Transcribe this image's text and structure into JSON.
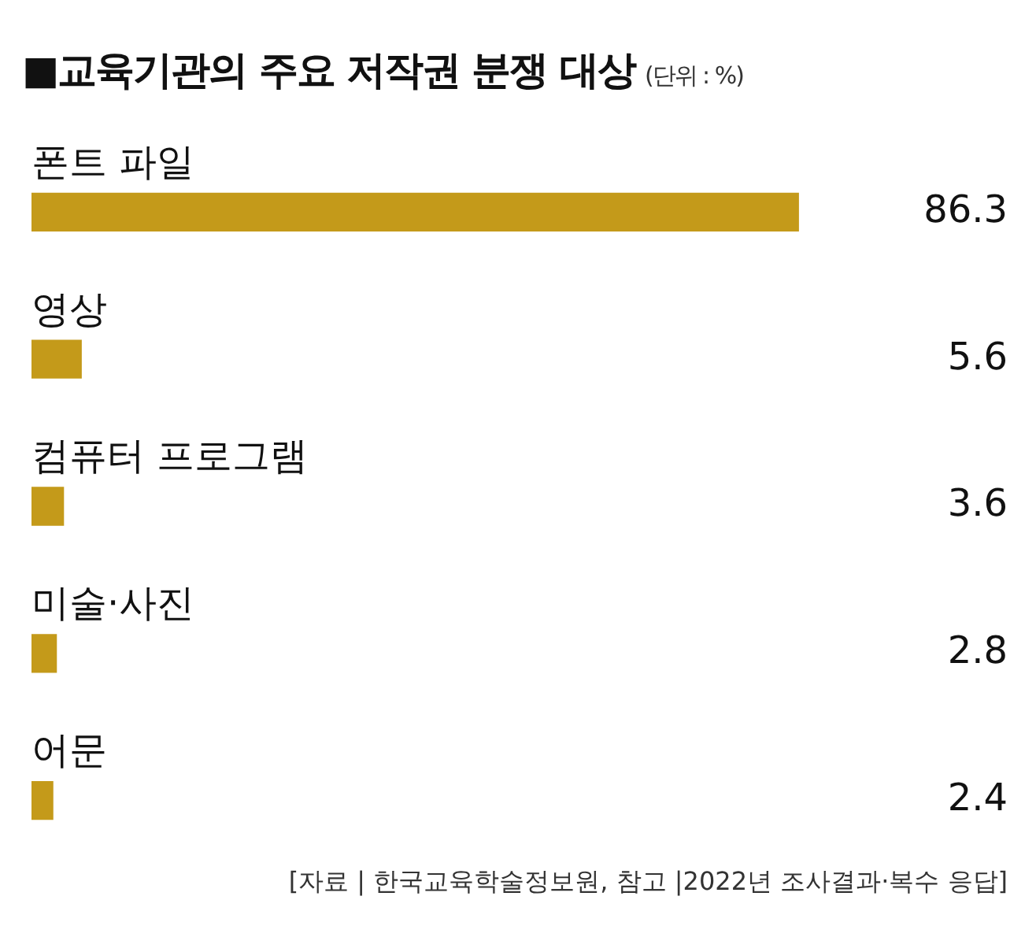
{
  "chart_data": {
    "type": "bar",
    "orientation": "horizontal",
    "title": "■교육기관의 주요 저작권 분쟁 대상",
    "subtitle": "(단위 : %)",
    "categories": [
      "폰트 파일",
      "영상",
      "컴퓨터 프로그램",
      "미술·사진",
      "어문"
    ],
    "values": [
      86.3,
      5.6,
      3.6,
      2.8,
      2.4
    ],
    "color": "#c49a1a",
    "data_labels": true,
    "legend": false,
    "annotations": [
      "[자료 | 한국교육학술정보원, 참고 |2022년 조사결과·복수 응답]"
    ]
  }
}
